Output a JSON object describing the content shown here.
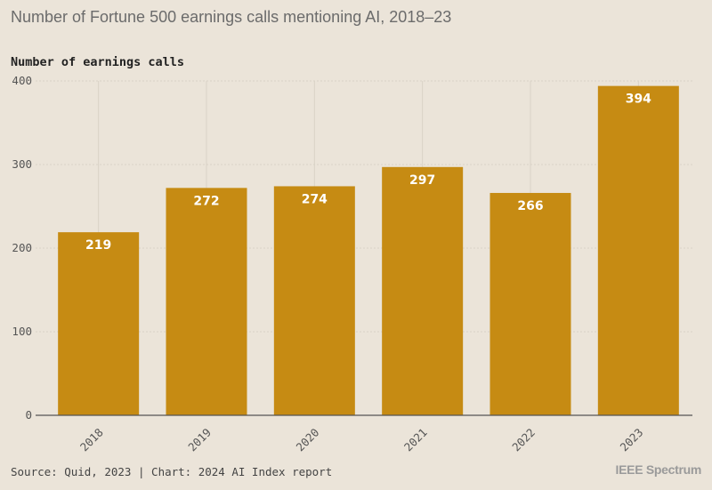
{
  "chart_data": {
    "type": "bar",
    "title": "Number of Fortune 500 earnings calls mentioning AI, 2018–23",
    "ylabel": "Number of earnings calls",
    "xlabel": "",
    "categories": [
      "2018",
      "2019",
      "2020",
      "2021",
      "2022",
      "2023"
    ],
    "values": [
      219,
      272,
      274,
      297,
      266,
      394
    ],
    "ylim": [
      0,
      400
    ],
    "yticks": [
      0,
      100,
      200,
      300,
      400
    ],
    "grid": true,
    "bar_color": "#c68b13"
  },
  "footer": {
    "source": "Source: Quid, 2023 | Chart: 2024 AI Index report",
    "brand": "IEEE Spectrum"
  }
}
